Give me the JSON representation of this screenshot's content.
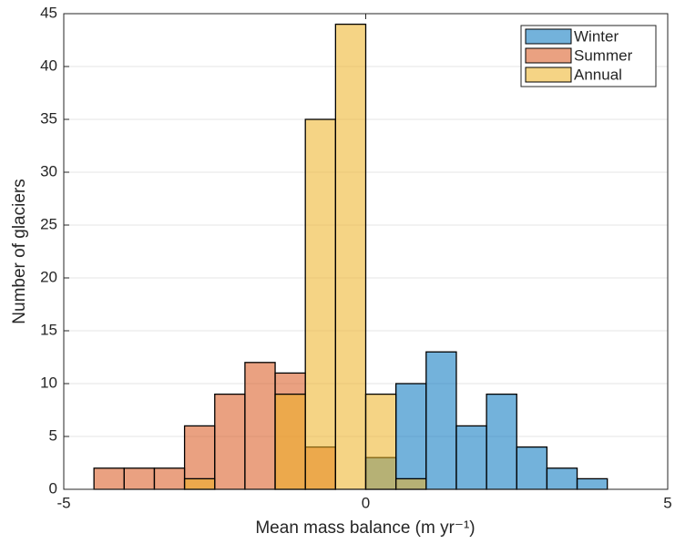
{
  "chart_data": {
    "type": "histogram",
    "xlabel": "Mean mass balance (m yr⁻¹)",
    "ylabel": "Number of glaciers",
    "bins": [
      -4.5,
      -4,
      -3.5,
      -3,
      -2.5,
      -2,
      -1.5,
      -1,
      -0.5,
      0,
      0.5,
      1,
      1.5,
      2,
      2.5,
      3,
      3.5,
      4
    ],
    "series": [
      {
        "name": "Winter",
        "color": "#0072bd",
        "values": [
          0,
          0,
          0,
          0,
          0,
          0,
          0,
          0,
          0,
          3,
          10,
          13,
          6,
          9,
          4,
          2,
          1
        ]
      },
      {
        "name": "Summer",
        "color": "#d95319",
        "values": [
          2,
          2,
          2,
          6,
          9,
          12,
          11,
          4,
          0,
          0,
          0,
          0,
          0,
          0,
          0,
          0,
          0
        ]
      },
      {
        "name": "Annual",
        "color": "#edb120",
        "values": [
          0,
          0,
          0,
          1,
          0,
          0,
          9,
          35,
          44,
          9,
          1,
          0,
          0,
          0,
          0,
          0,
          0
        ]
      }
    ],
    "xlim": [
      -5,
      5
    ],
    "xticks": [
      -5,
      0,
      5
    ],
    "ylim": [
      0,
      45
    ],
    "yticks": [
      0,
      5,
      10,
      15,
      20,
      25,
      30,
      35,
      40,
      45
    ],
    "grid": true,
    "legend": "upper-right"
  }
}
